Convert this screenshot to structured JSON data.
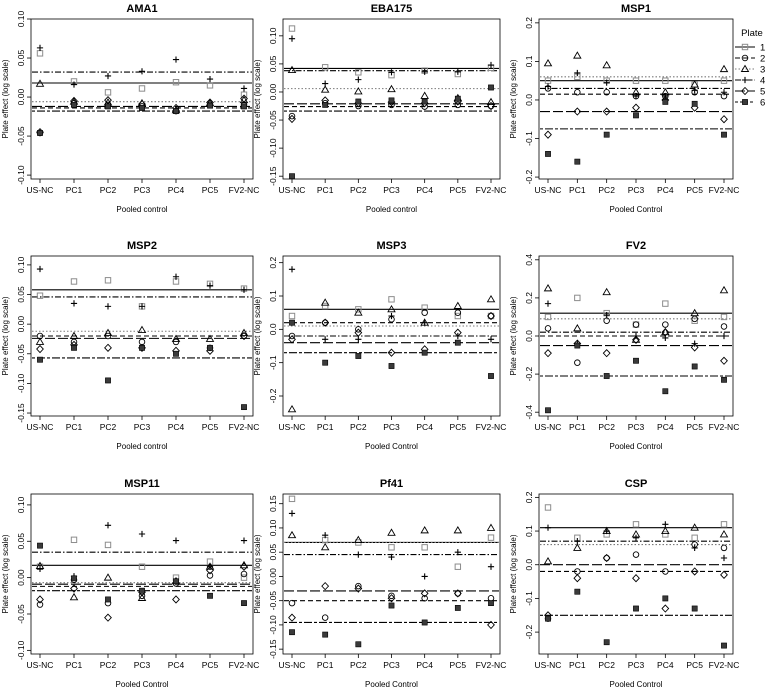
{
  "chart_data": [
    {
      "type": "scatter",
      "title": "AMA1",
      "xlabel": "Pooled control",
      "ylabel": "Plate effect (log scale)",
      "ylim": [
        -0.105,
        0.1
      ],
      "yticks": [
        -0.1,
        -0.05,
        0.0,
        0.05,
        0.1
      ],
      "ytick_labels": [
        "-0.10",
        "-0.05",
        "0.00",
        "0.05",
        "0.10"
      ],
      "categories": [
        "US-NC",
        "PC1",
        "PC2",
        "PC3",
        "PC4",
        "PC5",
        "FV2-NC"
      ],
      "series": [
        {
          "name": "1",
          "values": [
            0.056,
            0.02,
            0.006,
            0.011,
            0.019,
            0.015,
            0.003
          ],
          "mean": 0.018
        },
        {
          "name": "2",
          "values": [
            -0.046,
            -0.008,
            -0.01,
            -0.012,
            -0.018,
            -0.01,
            -0.01
          ],
          "mean": -0.014
        },
        {
          "name": "3",
          "values": [
            0.017,
            -0.006,
            -0.007,
            -0.008,
            -0.017,
            -0.008,
            -0.004
          ],
          "mean": -0.006
        },
        {
          "name": "4",
          "values": [
            0.063,
            0.016,
            0.027,
            0.033,
            0.048,
            0.023,
            0.011
          ],
          "mean": 0.032
        },
        {
          "name": "5",
          "values": [
            -0.045,
            -0.005,
            -0.004,
            -0.009,
            -0.014,
            -0.007,
            -0.002
          ],
          "mean": -0.012
        },
        {
          "name": "6",
          "values": [
            -0.046,
            -0.01,
            -0.012,
            -0.014,
            -0.018,
            -0.011,
            -0.012
          ],
          "mean": -0.018
        }
      ]
    },
    {
      "type": "scatter",
      "title": "EBA175",
      "xlabel": "Pooled control",
      "ylabel": "Plate effect (log scale)",
      "ylim": [
        -0.155,
        0.13
      ],
      "yticks": [
        -0.15,
        -0.1,
        -0.05,
        0.0,
        0.05,
        0.1
      ],
      "ytick_labels": [
        "-0.15",
        "-0.10",
        "-0.05",
        "0.00",
        "0.05",
        "0.10"
      ],
      "categories": [
        "US-NC",
        "PC1",
        "PC2",
        "PC3",
        "PC4",
        "PC5",
        "FV2-NC"
      ],
      "series": [
        {
          "name": "1",
          "values": [
            0.113,
            0.044,
            0.035,
            0.03,
            0.038,
            0.032,
            0.043
          ],
          "mean": 0.042
        },
        {
          "name": "2",
          "values": [
            -0.043,
            -0.02,
            -0.025,
            -0.023,
            -0.026,
            -0.023,
            -0.025
          ],
          "mean": -0.026
        },
        {
          "name": "3",
          "values": [
            0.039,
            0.004,
            0.001,
            0.005,
            -0.007,
            -0.011,
            -0.018
          ],
          "mean": 0.006
        },
        {
          "name": "4",
          "values": [
            0.095,
            0.015,
            0.022,
            0.035,
            0.036,
            0.036,
            0.048
          ],
          "mean": 0.038
        },
        {
          "name": "5",
          "values": [
            -0.048,
            -0.015,
            -0.02,
            -0.018,
            -0.02,
            -0.017,
            -0.025
          ],
          "mean": -0.021
        },
        {
          "name": "6",
          "values": [
            -0.15,
            -0.023,
            -0.017,
            -0.015,
            -0.017,
            -0.012,
            0.008
          ],
          "mean": -0.034
        }
      ]
    },
    {
      "type": "scatter",
      "title": "MSP1",
      "xlabel": "Pooled Control",
      "ylabel": "Plate effect (log scale)",
      "ylim": [
        -0.205,
        0.21
      ],
      "yticks": [
        -0.2,
        -0.1,
        0.0,
        0.1,
        0.2
      ],
      "ytick_labels": [
        "-0.2",
        "-0.1",
        "0.0",
        "0.1",
        "0.2"
      ],
      "categories": [
        "US-NC",
        "PC1",
        "PC2",
        "PC3",
        "PC4",
        "PC5",
        "FV2-NC"
      ],
      "series": [
        {
          "name": "1",
          "values": [
            0.05,
            0.06,
            0.05,
            0.05,
            0.05,
            0.04,
            0.05
          ],
          "mean": 0.05
        },
        {
          "name": "2",
          "values": [
            0.03,
            0.02,
            0.02,
            0.01,
            0.01,
            0.02,
            0.01
          ],
          "mean": 0.015
        },
        {
          "name": "3",
          "values": [
            0.095,
            0.115,
            0.09,
            0.02,
            0.02,
            0.04,
            0.08
          ],
          "mean": 0.06
        },
        {
          "name": "4",
          "values": [
            0.035,
            0.07,
            0.045,
            0.01,
            0.01,
            0.025,
            0.02
          ],
          "mean": 0.03
        },
        {
          "name": "5",
          "values": [
            -0.09,
            -0.03,
            -0.03,
            -0.02,
            0.0,
            -0.02,
            -0.05
          ],
          "mean": -0.03
        },
        {
          "name": "6",
          "values": [
            -0.14,
            -0.16,
            -0.09,
            -0.04,
            -0.005,
            -0.01,
            -0.09
          ],
          "mean": -0.075
        }
      ]
    },
    {
      "type": "scatter",
      "title": "MSP2",
      "xlabel": "Pooled control",
      "ylabel": "Plate effect (log scale)",
      "ylim": [
        -0.155,
        0.115
      ],
      "yticks": [
        -0.15,
        -0.1,
        -0.05,
        0.0,
        0.05,
        0.1
      ],
      "ytick_labels": [
        "-0.15",
        "-0.10",
        "-0.05",
        "0.00",
        "0.05",
        "0.10"
      ],
      "categories": [
        "US-NC",
        "PC1",
        "PC2",
        "PC3",
        "PC4",
        "PC5",
        "FV2-NC"
      ],
      "series": [
        {
          "name": "1",
          "values": [
            0.048,
            0.072,
            0.074,
            0.03,
            0.072,
            0.068,
            0.06
          ],
          "mean": 0.058
        },
        {
          "name": "2",
          "values": [
            -0.02,
            -0.03,
            -0.02,
            -0.03,
            -0.03,
            -0.04,
            -0.02
          ],
          "mean": -0.02
        },
        {
          "name": "3",
          "values": [
            -0.03,
            -0.02,
            -0.015,
            -0.01,
            -0.025,
            -0.025,
            -0.015
          ],
          "mean": -0.012
        },
        {
          "name": "4",
          "values": [
            0.093,
            0.035,
            0.03,
            0.03,
            0.08,
            0.065,
            0.058
          ],
          "mean": 0.046
        },
        {
          "name": "5",
          "values": [
            -0.042,
            -0.035,
            -0.04,
            -0.04,
            -0.045,
            -0.045,
            -0.02
          ],
          "mean": -0.024
        },
        {
          "name": "6",
          "values": [
            -0.06,
            -0.04,
            -0.095,
            -0.04,
            -0.05,
            -0.04,
            -0.14
          ],
          "mean": -0.057
        }
      ]
    },
    {
      "type": "scatter",
      "title": "MSP3",
      "xlabel": "Pooled Control",
      "ylabel": "Plate effect (log scale)",
      "ylim": [
        -0.26,
        0.22
      ],
      "yticks": [
        -0.2,
        -0.1,
        0.0,
        0.1,
        0.2
      ],
      "ytick_labels": [
        "-0.2",
        "-0.1",
        "0.0",
        "0.1",
        "0.2"
      ],
      "categories": [
        "US-NC",
        "PC1",
        "PC2",
        "PC3",
        "PC4",
        "PC5",
        "FV2-NC"
      ],
      "series": [
        {
          "name": "1",
          "values": [
            0.04,
            0.07,
            0.06,
            0.09,
            0.065,
            0.04,
            0.04
          ],
          "mean": 0.06
        },
        {
          "name": "2",
          "values": [
            -0.02,
            0.02,
            0.0,
            0.03,
            0.05,
            0.05,
            0.04
          ],
          "mean": 0.02
        },
        {
          "name": "3",
          "values": [
            -0.24,
            0.08,
            0.05,
            0.06,
            0.02,
            0.07,
            0.09
          ],
          "mean": 0.01
        },
        {
          "name": "4",
          "values": [
            0.18,
            -0.03,
            -0.03,
            0.04,
            0.02,
            -0.02,
            -0.03
          ],
          "mean": -0.02
        },
        {
          "name": "5",
          "values": [
            -0.03,
            0.02,
            -0.01,
            -0.07,
            -0.06,
            -0.01,
            0.04
          ],
          "mean": -0.04
        },
        {
          "name": "6",
          "values": [
            0.02,
            -0.1,
            -0.08,
            -0.11,
            -0.07,
            -0.04,
            -0.14
          ],
          "mean": -0.07
        }
      ]
    },
    {
      "type": "scatter",
      "title": "FV2",
      "xlabel": "Pooled Control",
      "ylabel": "Plate effect (log scale)",
      "ylim": [
        -0.42,
        0.42
      ],
      "yticks": [
        -0.4,
        -0.2,
        0.0,
        0.2,
        0.4
      ],
      "ytick_labels": [
        "-0.4",
        "-0.2",
        "0.0",
        "0.2",
        "0.4"
      ],
      "categories": [
        "US-NC",
        "PC1",
        "PC2",
        "PC3",
        "PC4",
        "PC5",
        "FV2-NC"
      ],
      "series": [
        {
          "name": "1",
          "values": [
            0.1,
            0.2,
            0.12,
            0.06,
            0.17,
            0.08,
            0.1
          ],
          "mean": 0.12
        },
        {
          "name": "2",
          "values": [
            0.04,
            -0.14,
            0.08,
            0.06,
            0.06,
            0.09,
            0.05
          ],
          "mean": 0.0
        },
        {
          "name": "3",
          "values": [
            0.25,
            0.04,
            0.23,
            -0.02,
            0.02,
            0.12,
            0.24
          ],
          "mean": 0.09
        },
        {
          "name": "4",
          "values": [
            0.17,
            -0.04,
            0.11,
            0.0,
            -0.01,
            -0.04,
            0.0
          ],
          "mean": 0.02
        },
        {
          "name": "5",
          "values": [
            -0.09,
            -0.04,
            -0.09,
            -0.02,
            0.02,
            -0.06,
            -0.13
          ],
          "mean": -0.05
        },
        {
          "name": "6",
          "values": [
            -0.39,
            -0.05,
            -0.21,
            -0.13,
            -0.29,
            -0.16,
            -0.23
          ],
          "mean": -0.21
        }
      ]
    },
    {
      "type": "scatter",
      "title": "MSP11",
      "xlabel": "Pooled Control",
      "ylabel": "Plate effect (log scale)",
      "ylim": [
        -0.105,
        0.115
      ],
      "yticks": [
        -0.1,
        -0.05,
        0.0,
        0.05,
        0.1
      ],
      "ytick_labels": [
        "-0.10",
        "-0.05",
        "0.00",
        "0.05",
        "0.10"
      ],
      "categories": [
        "US-NC",
        "PC1",
        "PC2",
        "PC3",
        "PC4",
        "PC5",
        "FV2-NC"
      ],
      "series": [
        {
          "name": "1",
          "values": [
            0.015,
            0.052,
            0.045,
            0.015,
            0.0,
            0.022,
            0.0
          ],
          "mean": 0.017
        },
        {
          "name": "2",
          "values": [
            -0.037,
            -0.003,
            -0.035,
            -0.025,
            -0.008,
            0.003,
            0.005
          ],
          "mean": -0.012
        },
        {
          "name": "3",
          "values": [
            0.016,
            -0.027,
            0.0,
            -0.028,
            -0.005,
            0.015,
            0.017
          ],
          "mean": -0.007
        },
        {
          "name": "4",
          "values": [
            0.012,
            0.002,
            0.072,
            0.06,
            0.051,
            0.015,
            0.051
          ],
          "mean": 0.035
        },
        {
          "name": "5",
          "values": [
            -0.03,
            -0.015,
            -0.055,
            -0.02,
            -0.03,
            0.01,
            0.015
          ],
          "mean": -0.009
        },
        {
          "name": "6",
          "values": [
            0.044,
            -0.001,
            -0.03,
            -0.018,
            -0.005,
            -0.025,
            -0.035
          ],
          "mean": -0.018
        }
      ]
    },
    {
      "type": "scatter",
      "title": "Pf41",
      "xlabel": "Pooled Control",
      "ylabel": "Plate effect (log scale)",
      "ylim": [
        -0.16,
        0.17
      ],
      "yticks": [
        -0.15,
        -0.1,
        -0.05,
        0.0,
        0.05,
        0.1,
        0.15
      ],
      "ytick_labels": [
        "-0.15",
        "-0.10",
        "-0.05",
        "0.00",
        "0.05",
        "0.10",
        "0.15"
      ],
      "categories": [
        "US-NC",
        "PC1",
        "PC2",
        "PC3",
        "PC4",
        "PC5",
        "FV2-NC"
      ],
      "series": [
        {
          "name": "1",
          "values": [
            0.16,
            0.075,
            0.07,
            0.06,
            0.06,
            0.02,
            0.08
          ],
          "mean": 0.07
        },
        {
          "name": "2",
          "values": [
            -0.055,
            -0.085,
            -0.02,
            -0.04,
            -0.045,
            -0.035,
            -0.045
          ],
          "mean": -0.05
        },
        {
          "name": "3",
          "values": [
            0.085,
            0.06,
            0.075,
            0.09,
            0.095,
            0.095,
            0.1
          ],
          "mean": 0.07
        },
        {
          "name": "4",
          "values": [
            0.13,
            0.085,
            0.045,
            0.04,
            0.0,
            0.05,
            0.02
          ],
          "mean": 0.045
        },
        {
          "name": "5",
          "values": [
            -0.085,
            -0.02,
            -0.025,
            -0.045,
            -0.035,
            -0.035,
            -0.1
          ],
          "mean": -0.03
        },
        {
          "name": "6",
          "values": [
            -0.115,
            -0.12,
            -0.14,
            -0.06,
            -0.095,
            -0.065,
            -0.055
          ],
          "mean": -0.095
        }
      ]
    },
    {
      "type": "scatter",
      "title": "CSP",
      "xlabel": "Pooled Control",
      "ylabel": "Plate effect (log scale)",
      "ylim": [
        -0.265,
        0.21
      ],
      "yticks": [
        -0.2,
        -0.1,
        0.0,
        0.1,
        0.2
      ],
      "ytick_labels": [
        "-0.2",
        "-0.1",
        "0.0",
        "0.1",
        "0.2"
      ],
      "categories": [
        "US-NC",
        "PC1",
        "PC2",
        "PC3",
        "PC4",
        "PC5",
        "FV2-NC"
      ],
      "series": [
        {
          "name": "1",
          "values": [
            0.17,
            0.08,
            0.09,
            0.12,
            0.09,
            0.08,
            0.12
          ],
          "mean": 0.11
        },
        {
          "name": "2",
          "values": [
            -0.16,
            -0.02,
            0.02,
            0.03,
            -0.02,
            0.06,
            0.05
          ],
          "mean": -0.02
        },
        {
          "name": "3",
          "values": [
            0.01,
            0.05,
            0.1,
            0.09,
            0.1,
            0.11,
            0.09
          ],
          "mean": 0.06
        },
        {
          "name": "4",
          "values": [
            0.11,
            0.07,
            0.1,
            0.08,
            0.12,
            0.05,
            0.02
          ],
          "mean": 0.07
        },
        {
          "name": "5",
          "values": [
            -0.15,
            -0.04,
            0.02,
            -0.04,
            -0.13,
            -0.02,
            -0.03
          ],
          "mean": 0.0
        },
        {
          "name": "6",
          "values": [
            -0.16,
            -0.08,
            -0.23,
            -0.13,
            -0.1,
            -0.13,
            -0.24
          ],
          "mean": -0.15
        }
      ]
    }
  ],
  "legend": {
    "title": "Plate",
    "entries": [
      {
        "label": "1",
        "symbol": "square-open-grey",
        "line": "solid"
      },
      {
        "label": "2",
        "symbol": "circle-open",
        "line": "dashed"
      },
      {
        "label": "3",
        "symbol": "triangle-open",
        "line": "dotted"
      },
      {
        "label": "4",
        "symbol": "plus",
        "line": "dotdash"
      },
      {
        "label": "5",
        "symbol": "diamond-open",
        "line": "longdash"
      },
      {
        "label": "6",
        "symbol": "square-filled",
        "line": "twodash"
      }
    ]
  }
}
